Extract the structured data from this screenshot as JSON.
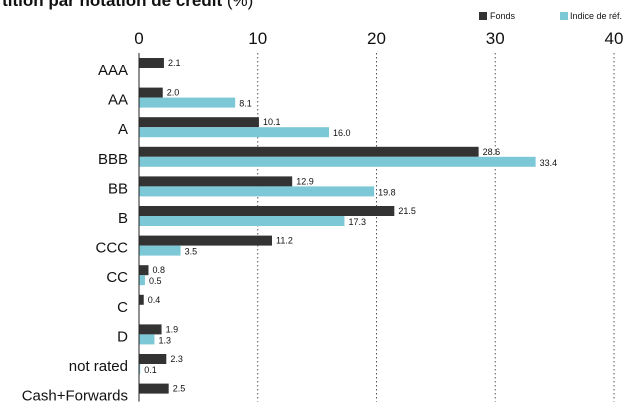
{
  "title_main": "artition par notation de crédit",
  "title_unit": "(%)",
  "chart_data": {
    "type": "bar",
    "orientation": "horizontal",
    "title": "artition par notation de crédit (%)",
    "categories": [
      "AAA",
      "AA",
      "A",
      "BBB",
      "BB",
      "B",
      "CCC",
      "CC",
      "C",
      "D",
      "not rated",
      "Cash+Forwards"
    ],
    "series": [
      {
        "name": "Fonds",
        "color": "#333333",
        "values": [
          2.1,
          2.0,
          10.1,
          28.6,
          12.9,
          21.5,
          11.2,
          0.8,
          0.4,
          1.9,
          2.3,
          2.5
        ],
        "labels": [
          "2.1",
          "2.0",
          "10.1",
          "28.6",
          "12.9",
          "21.5",
          "11.2",
          "0.8",
          "0.4",
          "1.9",
          "2.3",
          "2.5"
        ]
      },
      {
        "name": "Indice de réf.",
        "color": "#7cc8d6",
        "values": [
          null,
          8.1,
          16.0,
          33.4,
          19.8,
          17.3,
          3.5,
          0.5,
          null,
          1.3,
          0.1,
          null
        ],
        "labels": [
          null,
          "8.1",
          "16.0",
          "33.4",
          "19.8",
          "17.3",
          "3.5",
          "0.5",
          null,
          "1.3",
          "0.1",
          null
        ]
      }
    ],
    "xlim": [
      0,
      40
    ],
    "xticks": [
      0,
      10,
      20,
      30,
      40
    ],
    "tick_labels": [
      "0",
      "10",
      "20",
      "30",
      "40"
    ],
    "grid": "vertical dotted",
    "legend_position": "top-right"
  }
}
